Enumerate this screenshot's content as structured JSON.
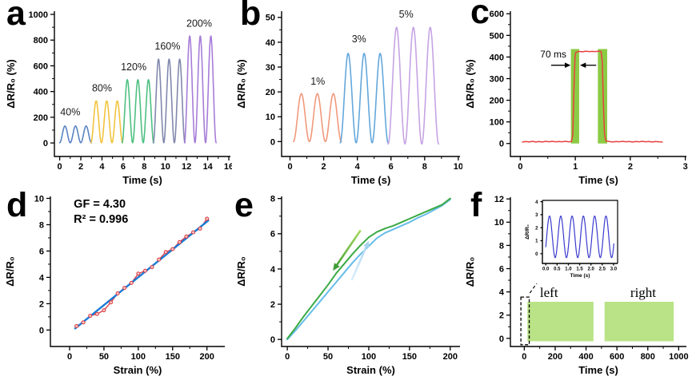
{
  "panel_labels": [
    "a",
    "b",
    "c",
    "d",
    "e",
    "f"
  ],
  "colors": {
    "axis": "#000000",
    "strain40": "#5b84c4",
    "strain80": "#f2c33d",
    "strain120": "#4fc081",
    "strain160": "#8289ad",
    "strain200": "#a77dd8",
    "strain1pct": "#f0997c",
    "strain3pct": "#64a8dc",
    "strain5pct": "#c6a4e4",
    "pulse_red": "#e8403f",
    "highlight_green": "#8ccb45",
    "fit_blue": "#1c7cd5",
    "data_red": "#d9363e",
    "loading_blue": "#66bce8",
    "unloading_green": "#3aaa44",
    "block_green": "#b9e386",
    "inset_blue": "#3b3bcf"
  },
  "chart_data": [
    {
      "panel": "a",
      "type": "line",
      "xlabel": "Time (s)",
      "ylabel": "ΔR/R₀ (%)",
      "xlim": [
        -0.5,
        16.15
      ],
      "ylim": [
        -105,
        1025
      ],
      "xticks": [
        0,
        2,
        4,
        6,
        8,
        10,
        12,
        14,
        16
      ],
      "yticks": [
        0,
        200,
        400,
        600,
        800,
        1000
      ],
      "elements": [
        {
          "kind": "sine_group",
          "label": "40%",
          "color": "#5b84c4",
          "t0": 0,
          "period": 1,
          "cycles": 3,
          "base": 2,
          "peak": 130,
          "label_x": 1.0,
          "label_y": 215
        },
        {
          "kind": "sine_group",
          "label": "80%",
          "color": "#f2c33d",
          "t0": 2.95,
          "period": 1,
          "cycles": 3,
          "base": 2,
          "peak": 325,
          "label_x": 4.0,
          "label_y": 400
        },
        {
          "kind": "sine_group",
          "label": "120%",
          "color": "#4fc081",
          "t0": 5.9,
          "period": 1,
          "cycles": 3,
          "base": 2,
          "peak": 490,
          "label_x": 7.0,
          "label_y": 565
        },
        {
          "kind": "sine_group",
          "label": "160%",
          "color": "#8289ad",
          "t0": 8.85,
          "period": 1,
          "cycles": 3,
          "base": 2,
          "peak": 650,
          "label_x": 10.2,
          "label_y": 728
        },
        {
          "kind": "sine_group",
          "label": "200%",
          "color": "#a77dd8",
          "t0": 11.8,
          "period": 1,
          "cycles": 3,
          "base": 2,
          "peak": 830,
          "label_x": 13.2,
          "label_y": 905
        }
      ]
    },
    {
      "panel": "b",
      "type": "line",
      "xlabel": "Time (s)",
      "ylabel": "ΔR/R₀ (%)",
      "xlim": [
        -0.5,
        10.1
      ],
      "ylim": [
        -6,
        52.5
      ],
      "xticks": [
        0,
        2,
        4,
        6,
        8,
        10
      ],
      "yticks": [
        0,
        10,
        20,
        30,
        40,
        50
      ],
      "elements": [
        {
          "kind": "sine_group",
          "label": "1%",
          "color": "#f0997c",
          "t0": 0.2,
          "period": 0.95,
          "cycles": 3,
          "base": 0,
          "peak": 19.3,
          "label_x": 1.65,
          "label_y": 23
        },
        {
          "kind": "sine_group",
          "label": "3%",
          "color": "#64a8dc",
          "t0": 2.98,
          "period": 0.95,
          "cycles": 3,
          "base": -0.5,
          "peak": 36,
          "label_x": 4.1,
          "label_y": 40
        },
        {
          "kind": "sine_group",
          "label": "5%",
          "color": "#c6a4e4",
          "t0": 5.83,
          "period": 1.0,
          "cycles": 3,
          "base": -1,
          "peak": 47,
          "label_x": 6.9,
          "label_y": 50
        }
      ]
    },
    {
      "panel": "c",
      "type": "line",
      "xlabel": "Time (s)",
      "ylabel": "ΔR/R₀ (%)",
      "xlim": [
        -0.18,
        3.02
      ],
      "ylim": [
        -60,
        612
      ],
      "xticks": [
        0,
        1,
        2,
        3
      ],
      "yticks": [
        0,
        100,
        200,
        300,
        400,
        500,
        600
      ],
      "elements": [
        {
          "kind": "band",
          "x0": 0.92,
          "x1": 1.07,
          "y0": 0,
          "y1": 437,
          "color": "#8ccb45"
        },
        {
          "kind": "band",
          "x0": 1.41,
          "x1": 1.58,
          "y0": 0,
          "y1": 437,
          "color": "#8ccb45"
        },
        {
          "kind": "line",
          "color": "#e8403f",
          "width": 1.5,
          "points": [
            [
              0.04,
              7
            ],
            [
              0.1,
              9
            ],
            [
              0.16,
              7
            ],
            [
              0.22,
              10
            ],
            [
              0.28,
              7
            ],
            [
              0.34,
              9
            ],
            [
              0.4,
              7
            ],
            [
              0.46,
              10
            ],
            [
              0.52,
              8
            ],
            [
              0.58,
              10
            ],
            [
              0.64,
              8
            ],
            [
              0.7,
              9
            ],
            [
              0.76,
              8
            ],
            [
              0.82,
              10
            ],
            [
              0.88,
              8
            ],
            [
              0.93,
              9
            ],
            [
              0.955,
              40
            ],
            [
              0.975,
              250
            ],
            [
              0.995,
              405
            ],
            [
              1.01,
              422
            ],
            [
              1.07,
              426
            ],
            [
              1.13,
              424
            ],
            [
              1.19,
              427
            ],
            [
              1.25,
              425
            ],
            [
              1.31,
              426
            ],
            [
              1.37,
              425
            ],
            [
              1.43,
              427
            ],
            [
              1.47,
              425
            ],
            [
              1.49,
              380
            ],
            [
              1.51,
              190
            ],
            [
              1.53,
              45
            ],
            [
              1.555,
              12
            ],
            [
              1.62,
              9
            ],
            [
              1.68,
              7
            ],
            [
              1.74,
              9
            ],
            [
              1.8,
              8
            ],
            [
              1.86,
              10
            ],
            [
              1.92,
              8
            ],
            [
              1.98,
              9
            ],
            [
              2.04,
              7
            ],
            [
              2.1,
              9
            ],
            [
              2.16,
              8
            ],
            [
              2.22,
              10
            ],
            [
              2.28,
              8
            ],
            [
              2.34,
              9
            ],
            [
              2.4,
              7
            ],
            [
              2.46,
              9
            ],
            [
              2.52,
              8
            ],
            [
              2.58,
              7
            ]
          ]
        },
        {
          "kind": "arrow",
          "x1": 0.56,
          "y1": 362,
          "x2": 0.915,
          "y2": 362,
          "color": "#000000",
          "width": 1.3,
          "head": 8
        },
        {
          "kind": "arrow",
          "x1": 1.38,
          "y1": 362,
          "x2": 1.085,
          "y2": 362,
          "color": "#000000",
          "width": 1.3,
          "head": 8
        },
        {
          "kind": "text",
          "x": 0.6,
          "y": 398,
          "text": "70 ms",
          "size": 12,
          "bold": false
        }
      ]
    },
    {
      "panel": "d",
      "type": "scatter",
      "xlabel": "Strain (%)",
      "ylabel": "ΔR/R₀",
      "xlim": [
        -28,
        226
      ],
      "ylim": [
        -1.25,
        10.15
      ],
      "xticks": [
        0,
        50,
        100,
        150,
        200
      ],
      "yticks": [
        0,
        2,
        4,
        6,
        8,
        10
      ],
      "annotations": [
        "GF = 4.30",
        "R² = 0.996"
      ],
      "elements": [
        {
          "kind": "line",
          "color": "#d9363e",
          "width": 1.3,
          "points": [
            [
              10,
              0.3
            ],
            [
              20,
              0.58
            ],
            [
              30,
              1.08
            ],
            [
              40,
              1.22
            ],
            [
              50,
              1.5
            ],
            [
              60,
              2.1
            ],
            [
              70,
              2.78
            ],
            [
              80,
              3.2
            ],
            [
              90,
              3.58
            ],
            [
              100,
              4.28
            ],
            [
              110,
              4.5
            ],
            [
              120,
              4.78
            ],
            [
              130,
              5.35
            ],
            [
              140,
              5.92
            ],
            [
              150,
              6.15
            ],
            [
              160,
              6.68
            ],
            [
              170,
              7.1
            ],
            [
              180,
              7.42
            ],
            [
              190,
              7.7
            ],
            [
              200,
              8.45
            ]
          ]
        },
        {
          "kind": "line",
          "color": "#1c7cd5",
          "width": 2.4,
          "points": [
            [
              8,
              0.12
            ],
            [
              202,
              8.32
            ]
          ]
        },
        {
          "kind": "markers",
          "color": "#d9363e",
          "fill": "#f7c8c8",
          "r": 2,
          "points": [
            [
              10,
              0.3
            ],
            [
              20,
              0.58
            ],
            [
              30,
              1.08
            ],
            [
              40,
              1.22
            ],
            [
              50,
              1.5
            ],
            [
              60,
              2.1
            ],
            [
              70,
              2.78
            ],
            [
              80,
              3.2
            ],
            [
              90,
              3.58
            ],
            [
              100,
              4.28
            ],
            [
              110,
              4.5
            ],
            [
              120,
              4.78
            ],
            [
              130,
              5.35
            ],
            [
              140,
              5.92
            ],
            [
              150,
              6.15
            ],
            [
              160,
              6.68
            ],
            [
              170,
              7.1
            ],
            [
              180,
              7.42
            ],
            [
              190,
              7.7
            ],
            [
              200,
              8.45
            ]
          ]
        },
        {
          "kind": "text",
          "x": 6,
          "y": 9.3,
          "text": "GF = 4.30",
          "size": 14.5,
          "bold": true,
          "anchor": "start"
        },
        {
          "kind": "text",
          "x": 6,
          "y": 8.15,
          "text": "R² = 0.996",
          "size": 14.5,
          "bold": true,
          "anchor": "start"
        }
      ]
    },
    {
      "panel": "e",
      "type": "line",
      "xlabel": "Strain (%)",
      "ylabel": "ΔR/R₀",
      "xlim": [
        -7,
        212
      ],
      "ylim": [
        -0.4,
        8.12
      ],
      "xticks": [
        0,
        50,
        100,
        150,
        200
      ],
      "yticks": [
        0,
        2,
        4,
        6,
        8
      ],
      "elements": [
        {
          "kind": "line",
          "color": "#66bce8",
          "width": 2,
          "points": [
            [
              0,
              0
            ],
            [
              10,
              0.5
            ],
            [
              20,
              1.05
            ],
            [
              30,
              1.6
            ],
            [
              40,
              2.15
            ],
            [
              50,
              2.7
            ],
            [
              60,
              3.25
            ],
            [
              70,
              3.8
            ],
            [
              80,
              4.35
            ],
            [
              90,
              4.85
            ],
            [
              100,
              5.3
            ],
            [
              110,
              5.75
            ],
            [
              120,
              6.05
            ],
            [
              130,
              6.25
            ],
            [
              140,
              6.45
            ],
            [
              150,
              6.65
            ],
            [
              160,
              6.9
            ],
            [
              170,
              7.1
            ],
            [
              180,
              7.35
            ],
            [
              190,
              7.6
            ],
            [
              200,
              7.95
            ]
          ]
        },
        {
          "kind": "line",
          "color": "#3aaa44",
          "width": 2,
          "points": [
            [
              0,
              0.05
            ],
            [
              10,
              0.65
            ],
            [
              20,
              1.3
            ],
            [
              30,
              1.9
            ],
            [
              40,
              2.5
            ],
            [
              50,
              3.1
            ],
            [
              60,
              3.75
            ],
            [
              70,
              4.3
            ],
            [
              80,
              4.85
            ],
            [
              90,
              5.35
            ],
            [
              100,
              5.8
            ],
            [
              110,
              6.1
            ],
            [
              120,
              6.3
            ],
            [
              130,
              6.45
            ],
            [
              140,
              6.65
            ],
            [
              150,
              6.85
            ],
            [
              160,
              7.05
            ],
            [
              170,
              7.25
            ],
            [
              180,
              7.45
            ],
            [
              190,
              7.65
            ],
            [
              200,
              8.0
            ]
          ]
        },
        {
          "kind": "arrow",
          "x1": 79,
          "y1": 3.35,
          "x2": 100,
          "y2": 5.6,
          "color": "#ddeffb",
          "color2": "#a9d4f0",
          "width": 2.6,
          "head": 9
        },
        {
          "kind": "arrow",
          "x1": 90,
          "y1": 6.2,
          "x2": 56,
          "y2": 3.9,
          "color": "#a9d95f",
          "color2": "#3d9c35",
          "width": 2.6,
          "head": 10
        }
      ]
    },
    {
      "panel": "f",
      "type": "line",
      "xlabel": "Time (s)",
      "ylabel": "ΔR/R₀",
      "xlim": [
        -90,
        1050
      ],
      "ylim": [
        -0.7,
        12.15
      ],
      "xticks": [
        0,
        200,
        400,
        600,
        800,
        1000
      ],
      "yticks": [
        0,
        2,
        4,
        6,
        8,
        10,
        12
      ],
      "elements": [
        {
          "kind": "block",
          "x0": 20,
          "x1": 448,
          "y0": -0.25,
          "y1": 3.15,
          "color": "#b9e386"
        },
        {
          "kind": "block",
          "x0": 520,
          "x1": 968,
          "y0": -0.25,
          "y1": 3.15,
          "color": "#b9e386"
        },
        {
          "kind": "dashed_rect",
          "x0": -22,
          "x1": 32,
          "y0": -0.55,
          "y1": 3.55,
          "color": "#000000"
        },
        {
          "kind": "arrow",
          "x1": 36,
          "y1": 3.9,
          "x2": 105,
          "y2": 5.2,
          "color": "#000000",
          "width": 1.2,
          "head": 7,
          "dash": "4 3"
        },
        {
          "kind": "text",
          "x": 160,
          "y": 3.55,
          "text": "left",
          "size": 17,
          "serif": true
        },
        {
          "kind": "text",
          "x": 770,
          "y": 3.55,
          "text": "right",
          "size": 17,
          "serif": true
        }
      ]
    },
    {
      "panel": "f_inset",
      "type": "line",
      "xlabel": "Time (s)",
      "ylabel": "ΔR/R₀",
      "xlim": [
        -0.15,
        3.18
      ],
      "ylim": [
        -0.75,
        4.1
      ],
      "xticks": [
        0,
        0.5,
        1,
        1.5,
        2,
        2.5,
        3
      ],
      "xtlabels": [
        "0.0",
        "0.5",
        "1.0",
        "1.5",
        "2.0",
        "2.5",
        "3.0"
      ],
      "yticks": [
        0,
        1,
        2,
        3,
        4
      ],
      "frame": true,
      "elements": [
        {
          "kind": "sine_wave",
          "mid": 1.3,
          "amp": 1.6,
          "period": 0.5,
          "phase": -0.08,
          "t0": 0,
          "t1": 3.02,
          "color": "#3b3bcf",
          "width": 1.2
        }
      ]
    }
  ]
}
